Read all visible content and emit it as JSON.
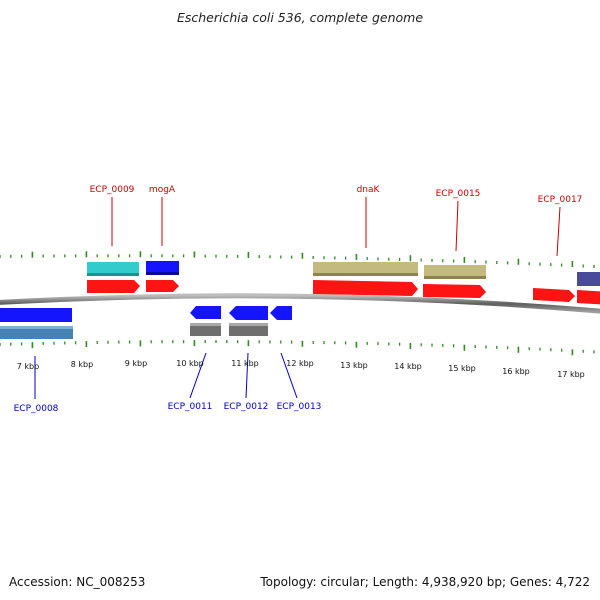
{
  "title": "Escherichia coli 536, complete genome",
  "accession": "Accession: NC_008253",
  "summary": "Topology: circular; Length: 4,938,920 bp; Genes: 4,722",
  "colors": {
    "backbone": "#8a8a8a",
    "ticks": "#2f8a1f",
    "forward_label": "#cc0000",
    "reverse_label": "#0000cc",
    "forward_cds": "#ff1414",
    "forward_rna": "#1414ff",
    "forward_gene_cyan": "#33cccc",
    "forward_gene_khaki": "#c2ba7e",
    "forward_gene_slate": "#4a4a9a",
    "reverse_cds": "#1414ff",
    "reverse_gene_steel": "#4682b4",
    "reverse_gene_gray": "#6e6e6e"
  },
  "scale_labels": [
    "7 kbp",
    "8 kbp",
    "9 kbp",
    "10 kbp",
    "11 kbp",
    "12 kbp",
    "13 kbp",
    "14 kbp",
    "15 kbp",
    "16 kbp",
    "17 kbp"
  ],
  "forward_labels": [
    "ECP_0009",
    "mogA",
    "dnaK",
    "ECP_0015",
    "ECP_0017"
  ],
  "reverse_labels": [
    "ECP_0008",
    "ECP_0011",
    "ECP_0012",
    "ECP_0013"
  ]
}
